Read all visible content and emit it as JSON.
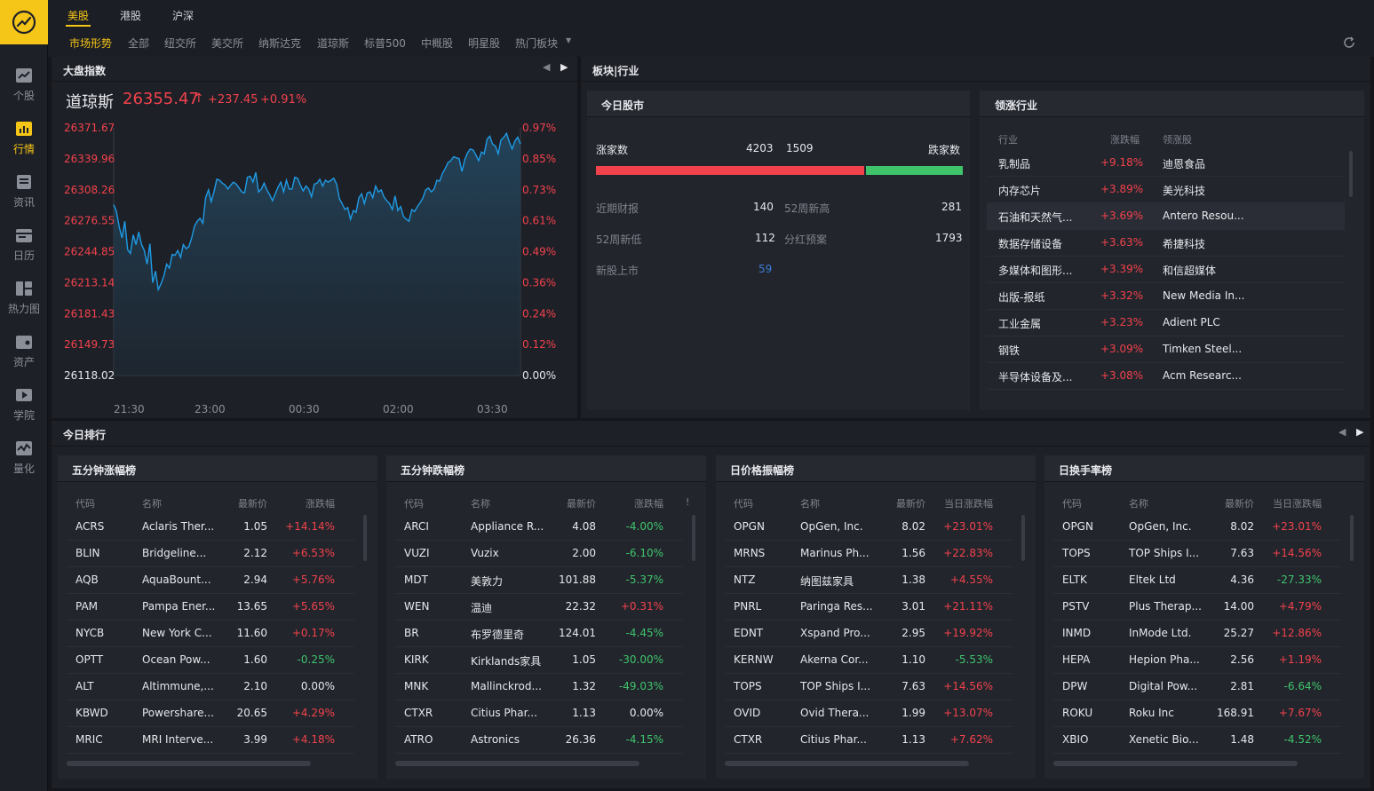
{
  "sidebar": {
    "items": [
      {
        "label": "个股",
        "icon": "chart-line-icon"
      },
      {
        "label": "行情",
        "icon": "market-icon"
      },
      {
        "label": "资讯",
        "icon": "news-icon"
      },
      {
        "label": "日历",
        "icon": "calendar-icon"
      },
      {
        "label": "热力图",
        "icon": "heatmap-icon"
      },
      {
        "label": "资产",
        "icon": "wallet-icon"
      },
      {
        "label": "学院",
        "icon": "video-icon"
      },
      {
        "label": "量化",
        "icon": "quant-icon"
      }
    ],
    "active": "行情"
  },
  "tabs": [
    "美股",
    "港股",
    "沪深"
  ],
  "active_tab": "美股",
  "subtabs": [
    "市场形势",
    "全部",
    "纽交所",
    "美交所",
    "纳斯达克",
    "道琼斯",
    "标普500",
    "中概股",
    "明星股",
    "热门板块"
  ],
  "active_subtab": "市场形势",
  "index_panel": {
    "title": "大盘指数",
    "index_name": "道琼斯",
    "price": "26355.47",
    "arrow": "↑",
    "change": "+237.45",
    "change_pct": "+0.91%"
  },
  "chart_data": {
    "type": "line",
    "y_labels": [
      "26371.67",
      "26339.96",
      "26308.26",
      "26276.55",
      "26244.85",
      "26213.14",
      "26181.43",
      "26149.73",
      "26118.02"
    ],
    "pct_labels": [
      "0.97%",
      "0.85%",
      "0.73%",
      "0.61%",
      "0.49%",
      "0.36%",
      "0.24%",
      "0.12%",
      "0.00%"
    ],
    "x_labels": [
      "21:30",
      "23:00",
      "00:30",
      "02:00",
      "03:30"
    ],
    "ylim": [
      26118.02,
      26371.67
    ],
    "series": [
      {
        "values": [
          26293,
          26286,
          26270,
          26259,
          26276,
          26247,
          26243,
          26262,
          26252,
          26265,
          26252,
          26246,
          26232,
          26253,
          26213,
          26225,
          26206,
          26212,
          26220,
          26232,
          26228,
          26242,
          26241,
          26246,
          26239,
          26252,
          26248,
          26250,
          26259,
          26271,
          26276,
          26279,
          26274,
          26300,
          26308,
          26296,
          26306,
          26319,
          26318,
          26315,
          26313,
          26309,
          26313,
          26316,
          26314,
          26310,
          26306,
          26305,
          26321,
          26322,
          26316,
          26326,
          26306,
          26309,
          26315,
          26308,
          26303,
          26297,
          26304,
          26311,
          26316,
          26306,
          26318,
          26309,
          26309,
          26321,
          26320,
          26313,
          26307,
          26312,
          26309,
          26301,
          26314,
          26315,
          26319,
          26312,
          26318,
          26316,
          26318,
          26320,
          26314,
          26299,
          26294,
          26288,
          26290,
          26278,
          26287,
          26285,
          26300,
          26304,
          26294,
          26305,
          26306,
          26300,
          26312,
          26306,
          26308,
          26301,
          26297,
          26294,
          26288,
          26302,
          26287,
          26291,
          26281,
          26278,
          26276,
          26288,
          26286,
          26291,
          26295,
          26300,
          26308,
          26310,
          26306,
          26309,
          26318,
          26317,
          26325,
          26330,
          26336,
          26338,
          26342,
          26341,
          26340,
          26327,
          26339,
          26346,
          26350,
          26349,
          26344,
          26338,
          26347,
          26345,
          26360,
          26363,
          26355,
          26353,
          26345,
          26359,
          26362,
          26366,
          26357,
          26350,
          26358,
          26362,
          26355
        ]
      }
    ]
  },
  "sector_panel": {
    "title": "板块|行业"
  },
  "today_market": {
    "title": "今日股市",
    "up_label": "涨家数",
    "up_count": "4203",
    "down_count": "1509",
    "down_label": "跌家数",
    "up_ratio": 0.7358,
    "stats": [
      {
        "label": "近期财报",
        "value": "140"
      },
      {
        "label": "52周新高",
        "value": "281"
      },
      {
        "label": "52周新低",
        "value": "112"
      },
      {
        "label": "分红预案",
        "value": "1793"
      },
      {
        "label": "新股上市",
        "value": "59"
      }
    ]
  },
  "leading_industry": {
    "title": "领涨行业",
    "headers": [
      "行业",
      "涨跌幅",
      "领涨股"
    ],
    "rows": [
      [
        "乳制品",
        "+9.18%",
        "迪恩食品"
      ],
      [
        "内存芯片",
        "+3.89%",
        "美光科技"
      ],
      [
        "石油和天然气...",
        "+3.69%",
        "Antero Resou..."
      ],
      [
        "数据存储设备",
        "+3.63%",
        "希捷科技"
      ],
      [
        "多媒体和图形...",
        "+3.39%",
        "和信超媒体"
      ],
      [
        "出版-报纸",
        "+3.32%",
        "New Media In..."
      ],
      [
        "工业金属",
        "+3.23%",
        "Adient PLC"
      ],
      [
        "钢铁",
        "+3.09%",
        "Timken Steel..."
      ],
      [
        "半导体设备及...",
        "+3.08%",
        "Acm Researc..."
      ]
    ]
  },
  "ranking": {
    "title": "今日排行",
    "boards": [
      {
        "title": "五分钟涨幅榜",
        "headers": [
          "代码",
          "名称",
          "最新价",
          "涨跌幅"
        ],
        "rows": [
          [
            "ACRS",
            "Aclaris Ther...",
            "1.05",
            "+14.14%"
          ],
          [
            "BLIN",
            "Bridgeline...",
            "2.12",
            "+6.53%"
          ],
          [
            "AQB",
            "AquaBount...",
            "2.94",
            "+5.76%"
          ],
          [
            "PAM",
            "Pampa Ener...",
            "13.65",
            "+5.65%"
          ],
          [
            "NYCB",
            "New York C...",
            "11.60",
            "+0.17%"
          ],
          [
            "OPTT",
            "Ocean Pow...",
            "1.60",
            "-0.25%"
          ],
          [
            "ALT",
            "Altimmune,...",
            "2.10",
            "0.00%"
          ],
          [
            "KBWD",
            "Powershare...",
            "20.65",
            "+4.29%"
          ],
          [
            "MRIC",
            "MRI Interve...",
            "3.99",
            "+4.18%"
          ]
        ]
      },
      {
        "title": "五分钟跌幅榜",
        "headers": [
          "代码",
          "名称",
          "最新价",
          "涨跌幅"
        ],
        "rows": [
          [
            "ARCI",
            "Appliance R...",
            "4.08",
            "-4.00%"
          ],
          [
            "VUZI",
            "Vuzix",
            "2.00",
            "-6.10%"
          ],
          [
            "MDT",
            "美敦力",
            "101.88",
            "-5.37%"
          ],
          [
            "WEN",
            "温迪",
            "22.32",
            "+0.31%"
          ],
          [
            "BR",
            "布罗德里奇",
            "124.01",
            "-4.45%"
          ],
          [
            "KIRK",
            "Kirklands家具",
            "1.05",
            "-30.00%"
          ],
          [
            "MNK",
            "Mallinckrod...",
            "1.32",
            "-49.03%"
          ],
          [
            "CTXR",
            "Citius Phar...",
            "1.13",
            "0.00%"
          ],
          [
            "ATRO",
            "Astronics",
            "26.36",
            "-4.15%"
          ]
        ]
      },
      {
        "title": "日价格振幅榜",
        "headers": [
          "代码",
          "名称",
          "最新价",
          "当日涨跌幅"
        ],
        "rows": [
          [
            "OPGN",
            "OpGen, Inc.",
            "8.02",
            "+23.01%"
          ],
          [
            "MRNS",
            "Marinus Ph...",
            "1.56",
            "+22.83%"
          ],
          [
            "NTZ",
            "纳图兹家具",
            "1.38",
            "+4.55%"
          ],
          [
            "PNRL",
            "Paringa Res...",
            "3.01",
            "+21.11%"
          ],
          [
            "EDNT",
            "Xspand Pro...",
            "2.95",
            "+19.92%"
          ],
          [
            "KERNW",
            "Akerna Cor...",
            "1.10",
            "-5.53%"
          ],
          [
            "TOPS",
            "TOP Ships I...",
            "7.63",
            "+14.56%"
          ],
          [
            "OVID",
            "Ovid Thera...",
            "1.99",
            "+13.07%"
          ],
          [
            "CTXR",
            "Citius Phar...",
            "1.13",
            "+7.62%"
          ]
        ]
      },
      {
        "title": "日换手率榜",
        "headers": [
          "代码",
          "名称",
          "最新价",
          "当日涨跌幅"
        ],
        "rows": [
          [
            "OPGN",
            "OpGen, Inc.",
            "8.02",
            "+23.01%"
          ],
          [
            "TOPS",
            "TOP Ships I...",
            "7.63",
            "+14.56%"
          ],
          [
            "ELTK",
            "Eltek Ltd",
            "4.36",
            "-27.33%"
          ],
          [
            "PSTV",
            "Plus Therap...",
            "14.00",
            "+4.79%"
          ],
          [
            "INMD",
            "InMode Ltd.",
            "25.27",
            "+12.86%"
          ],
          [
            "HEPA",
            "Hepion Pha...",
            "2.56",
            "+1.19%"
          ],
          [
            "DPW",
            "Digital Pow...",
            "2.81",
            "-6.64%"
          ],
          [
            "ROKU",
            "Roku Inc",
            "168.91",
            "+7.67%"
          ],
          [
            "XBIO",
            "Xenetic Bio...",
            "1.48",
            "-4.52%"
          ]
        ]
      }
    ]
  },
  "colors": {
    "accent": "#f5c518",
    "up": "#f2424c",
    "down": "#3fc46c",
    "line": "#1e9be6"
  }
}
